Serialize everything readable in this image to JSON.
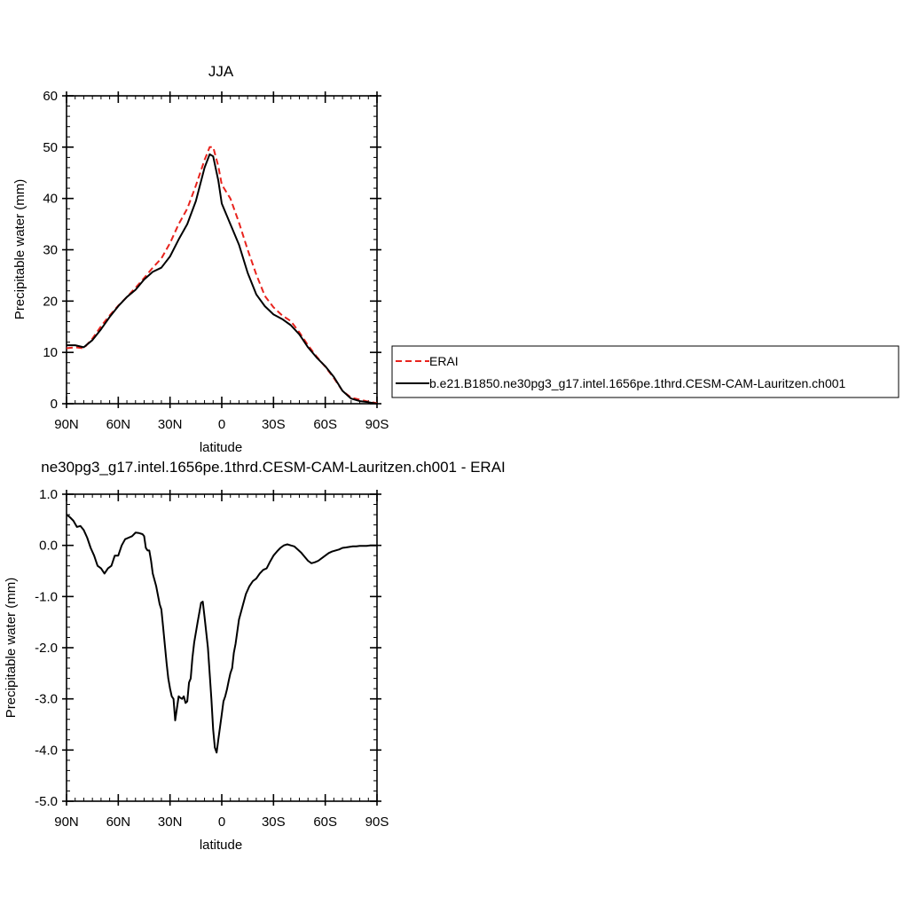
{
  "chart_data": [
    {
      "type": "line",
      "title": "JJA",
      "xlabel": "latitude",
      "ylabel": "Precipitable water (mm)",
      "xlim": [
        90,
        -90
      ],
      "ylim": [
        0,
        60
      ],
      "grid": false,
      "xticks": [
        {
          "value": 90,
          "label": "90N"
        },
        {
          "value": 60,
          "label": "60N"
        },
        {
          "value": 30,
          "label": "30N"
        },
        {
          "value": 0,
          "label": "0"
        },
        {
          "value": -30,
          "label": "30S"
        },
        {
          "value": -60,
          "label": "60S"
        },
        {
          "value": -90,
          "label": "90S"
        }
      ],
      "yticks": [
        {
          "value": 0,
          "label": "0"
        },
        {
          "value": 10,
          "label": "10"
        },
        {
          "value": 20,
          "label": "20"
        },
        {
          "value": 30,
          "label": "30"
        },
        {
          "value": 40,
          "label": "40"
        },
        {
          "value": 50,
          "label": "50"
        },
        {
          "value": 60,
          "label": "60"
        }
      ],
      "legend_position": "right",
      "series": [
        {
          "name": "ERAI",
          "color": "#e8231d",
          "dash": "dashed",
          "x": [
            90,
            85,
            80,
            75,
            70,
            65,
            60,
            55,
            50,
            45,
            40,
            35,
            30,
            25,
            20,
            15,
            10,
            7,
            5,
            2,
            0,
            -5,
            -10,
            -15,
            -20,
            -25,
            -30,
            -35,
            -40,
            -45,
            -50,
            -55,
            -60,
            -65,
            -70,
            -75,
            -80,
            -85,
            -90
          ],
          "y": [
            10.8,
            11.0,
            10.8,
            12.7,
            15.1,
            17.2,
            19.1,
            20.8,
            22.6,
            24.5,
            26.5,
            28.3,
            31.3,
            35.0,
            38.0,
            42.5,
            47.5,
            50.0,
            50.0,
            46.3,
            42.7,
            40.0,
            35.3,
            30.0,
            25.2,
            21.0,
            18.8,
            17.2,
            16.1,
            13.9,
            11.4,
            9.2,
            7.2,
            5.0,
            2.5,
            1.2,
            0.8,
            0.4,
            0.1
          ]
        },
        {
          "name": "b.e21.B1850.ne30pg3_g17.intel.1656pe.1thrd.CESM-CAM-Lauritzen.ch001",
          "color": "#000000",
          "dash": "solid",
          "x": [
            90,
            85,
            80,
            75,
            70,
            65,
            60,
            55,
            50,
            45,
            40,
            35,
            30,
            25,
            20,
            15,
            10,
            7,
            5,
            2,
            0,
            -5,
            -10,
            -15,
            -20,
            -25,
            -30,
            -35,
            -40,
            -45,
            -50,
            -55,
            -60,
            -65,
            -70,
            -75,
            -80,
            -85,
            -90
          ],
          "y": [
            11.4,
            11.4,
            11.0,
            12.4,
            14.5,
            16.9,
            19.0,
            20.8,
            22.2,
            24.2,
            25.7,
            26.5,
            28.7,
            32.0,
            35.0,
            39.5,
            46.0,
            48.6,
            48.2,
            43.5,
            39.0,
            35.0,
            31.0,
            25.5,
            21.3,
            19.0,
            17.4,
            16.5,
            15.3,
            13.5,
            11.0,
            9.0,
            7.3,
            5.2,
            2.5,
            1.0,
            0.5,
            0.3,
            0.0
          ]
        }
      ]
    },
    {
      "type": "line",
      "title": "ne30pg3_g17.intel.1656pe.1thrd.CESM-CAM-Lauritzen.ch001 - ERAI",
      "xlabel": "latitude",
      "ylabel": "Precipitable water (mm)",
      "xlim": [
        90,
        -90
      ],
      "ylim": [
        -5.0,
        1.0
      ],
      "grid": false,
      "xticks": [
        {
          "value": 90,
          "label": "90N"
        },
        {
          "value": 60,
          "label": "60N"
        },
        {
          "value": 30,
          "label": "30N"
        },
        {
          "value": 0,
          "label": "0"
        },
        {
          "value": -30,
          "label": "30S"
        },
        {
          "value": -60,
          "label": "60S"
        },
        {
          "value": -90,
          "label": "90S"
        }
      ],
      "yticks": [
        {
          "value": 1.0,
          "label": "1.0"
        },
        {
          "value": 0.0,
          "label": "0.0"
        },
        {
          "value": -1.0,
          "label": "-1.0"
        },
        {
          "value": -2.0,
          "label": "-2.0"
        },
        {
          "value": -3.0,
          "label": "-3.0"
        },
        {
          "value": -4.0,
          "label": "-4.0"
        },
        {
          "value": -5.0,
          "label": "-5.0"
        }
      ],
      "series": [
        {
          "color": "#000000",
          "dash": "solid",
          "x": [
            90,
            88,
            86,
            84,
            82,
            80,
            78,
            76,
            74,
            72,
            70,
            68,
            66,
            64,
            62,
            60,
            58,
            56,
            54,
            52,
            50,
            48,
            46,
            45,
            44,
            43,
            42,
            41,
            40,
            38,
            36,
            35,
            34,
            32,
            31,
            30,
            29,
            28,
            27,
            25,
            24,
            23,
            22,
            21,
            20,
            19,
            18,
            17,
            16,
            14,
            12,
            11,
            10,
            8,
            6,
            5,
            4,
            3,
            2,
            0,
            -1,
            -2,
            -3,
            -4,
            -5,
            -6,
            -7,
            -8,
            -10,
            -12,
            -14,
            -16,
            -18,
            -20,
            -22,
            -24,
            -26,
            -28,
            -30,
            -32,
            -34,
            -36,
            -38,
            -40,
            -42,
            -44,
            -46,
            -48,
            -50,
            -52,
            -54,
            -56,
            -58,
            -60,
            -62,
            -64,
            -66,
            -68,
            -70,
            -72,
            -74,
            -76,
            -78,
            -80,
            -82,
            -84,
            -86,
            -88,
            -90
          ],
          "y": [
            0.6,
            0.55,
            0.48,
            0.36,
            0.38,
            0.3,
            0.15,
            -0.05,
            -0.2,
            -0.4,
            -0.45,
            -0.55,
            -0.45,
            -0.4,
            -0.2,
            -0.2,
            0.0,
            0.12,
            0.15,
            0.18,
            0.25,
            0.24,
            0.22,
            0.18,
            -0.05,
            -0.1,
            -0.1,
            -0.3,
            -0.55,
            -0.8,
            -1.15,
            -1.25,
            -1.6,
            -2.3,
            -2.6,
            -2.8,
            -2.95,
            -3.0,
            -3.42,
            -2.95,
            -2.98,
            -3.0,
            -2.95,
            -3.08,
            -3.05,
            -2.68,
            -2.6,
            -2.2,
            -1.9,
            -1.5,
            -1.12,
            -1.1,
            -1.4,
            -2.0,
            -3.0,
            -3.6,
            -3.95,
            -4.05,
            -3.8,
            -3.3,
            -3.05,
            -2.95,
            -2.82,
            -2.65,
            -2.5,
            -2.4,
            -2.1,
            -1.92,
            -1.45,
            -1.2,
            -0.95,
            -0.8,
            -0.7,
            -0.65,
            -0.55,
            -0.48,
            -0.45,
            -0.32,
            -0.2,
            -0.12,
            -0.05,
            0.0,
            0.02,
            0.0,
            -0.02,
            -0.08,
            -0.14,
            -0.22,
            -0.3,
            -0.35,
            -0.33,
            -0.3,
            -0.25,
            -0.2,
            -0.15,
            -0.12,
            -0.1,
            -0.08,
            -0.05,
            -0.04,
            -0.03,
            -0.02,
            -0.02,
            -0.01,
            -0.01,
            -0.01,
            0.0,
            0.0,
            0.0
          ]
        }
      ]
    }
  ],
  "colors": {
    "erai": "#e8231d",
    "model": "#000000",
    "axis": "#000000"
  }
}
